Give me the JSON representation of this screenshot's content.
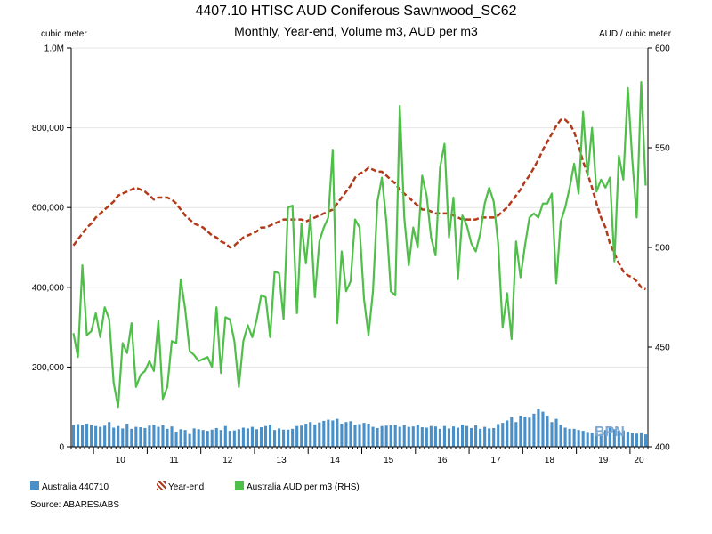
{
  "chart_data": {
    "type": "bar",
    "title": "4407.10 HTISC AUD Coniferous Sawnwood_SC62",
    "subtitle": "Monthly, Year-end, Volume m3, AUD per m3",
    "ylabel_left": "cubic meter",
    "ylabel_right": "AUD / cubic meter",
    "source": "Source: ABARES/ABS",
    "watermark": "BPN",
    "ylim_left": [
      0,
      1000000
    ],
    "ylim_right": [
      400,
      600
    ],
    "yticks_left": [
      {
        "value": 0,
        "label": "0"
      },
      {
        "value": 200000,
        "label": "200,000"
      },
      {
        "value": 400000,
        "label": "400,000"
      },
      {
        "value": 600000,
        "label": "600,000"
      },
      {
        "value": 800000,
        "label": "800,000"
      },
      {
        "value": 1000000,
        "label": "1.0M"
      }
    ],
    "yticks_right": [
      {
        "value": 400,
        "label": "400"
      },
      {
        "value": 450,
        "label": "450"
      },
      {
        "value": 500,
        "label": "500"
      },
      {
        "value": 550,
        "label": "550"
      },
      {
        "value": 600,
        "label": "600"
      }
    ],
    "x_year_labels": [
      "10",
      "11",
      "12",
      "13",
      "14",
      "15",
      "16",
      "17",
      "18",
      "19",
      "20"
    ],
    "x_start": "2009-08",
    "months": 129,
    "series": [
      {
        "name": "Australia 440710",
        "kind": "bar",
        "axis": "left",
        "color": "#4a90c8",
        "values": [
          55000,
          57000,
          54000,
          58000,
          55000,
          52000,
          50000,
          53000,
          62000,
          48000,
          52000,
          46000,
          58000,
          45000,
          50000,
          49000,
          47000,
          53000,
          55000,
          50000,
          54000,
          45000,
          51000,
          38000,
          44000,
          42000,
          32000,
          46000,
          44000,
          42000,
          40000,
          43000,
          47000,
          42000,
          52000,
          40000,
          41000,
          44000,
          48000,
          46000,
          50000,
          44000,
          49000,
          52000,
          56000,
          42000,
          46000,
          43000,
          43000,
          45000,
          52000,
          53000,
          58000,
          62000,
          56000,
          61000,
          65000,
          68000,
          66000,
          70000,
          58000,
          62000,
          64000,
          55000,
          57000,
          60000,
          58000,
          50000,
          47000,
          52000,
          53000,
          54000,
          55000,
          50000,
          54000,
          50000,
          51000,
          55000,
          49000,
          48000,
          52000,
          51000,
          45000,
          52000,
          46000,
          51000,
          48000,
          55000,
          52000,
          47000,
          54000,
          45000,
          50000,
          46000,
          47000,
          57000,
          60000,
          66000,
          74000,
          62000,
          78000,
          76000,
          73000,
          83000,
          95000,
          88000,
          78000,
          62000,
          70000,
          55000,
          48000,
          45000,
          45000,
          42000,
          40000,
          37000,
          35000,
          36000,
          32000,
          42000,
          50000,
          44000,
          40000,
          41000,
          38000,
          35000,
          33000,
          36000,
          31000
        ]
      },
      {
        "name": "Year-end",
        "kind": "line",
        "axis": "right",
        "color": "#b23a1a",
        "dashed": true,
        "values": [
          501,
          504,
          507,
          510,
          512,
          515,
          517,
          519,
          521,
          523,
          526,
          527,
          528,
          529,
          530,
          529,
          528,
          526,
          524,
          525,
          525,
          525,
          524,
          522,
          519,
          516,
          514,
          512,
          511,
          510,
          508,
          506,
          505,
          503,
          502,
          500,
          501,
          503,
          505,
          506,
          507,
          508,
          510,
          510,
          511,
          512,
          513,
          514,
          514,
          514,
          514,
          514,
          513,
          514,
          515,
          516,
          517,
          518,
          519,
          522,
          525,
          528,
          531,
          535,
          537,
          538,
          540,
          539,
          538,
          538,
          536,
          534,
          532,
          529,
          527,
          525,
          523,
          521,
          519,
          519,
          518,
          517,
          517,
          517,
          517,
          516,
          515,
          514,
          514,
          514,
          514,
          515,
          515,
          515,
          515,
          516,
          518,
          520,
          523,
          526,
          529,
          533,
          536,
          540,
          544,
          549,
          553,
          557,
          561,
          564,
          564,
          562,
          558,
          551,
          543,
          537,
          530,
          522,
          515,
          510,
          502,
          497,
          492,
          488,
          486,
          485,
          483,
          480,
          479
        ]
      },
      {
        "name": "Australia AUD per m3 (RHS)",
        "kind": "line",
        "axis": "right",
        "color": "#4fbf4a",
        "values": [
          457,
          445,
          491,
          456,
          458,
          467,
          455,
          470,
          464,
          432,
          420,
          452,
          447,
          462,
          430,
          436,
          438,
          443,
          438,
          463,
          424,
          430,
          453,
          452,
          484,
          469,
          448,
          446,
          443,
          444,
          445,
          440,
          470,
          437,
          465,
          464,
          453,
          430,
          453,
          461,
          455,
          464,
          476,
          475,
          455,
          488,
          487,
          464,
          520,
          521,
          467,
          512,
          492,
          516,
          475,
          503,
          510,
          515,
          549,
          462,
          498,
          478,
          483,
          514,
          510,
          474,
          456,
          478,
          523,
          535,
          513,
          478,
          476,
          571,
          515,
          491,
          510,
          500,
          536,
          526,
          505,
          496,
          540,
          552,
          505,
          525,
          484,
          516,
          511,
          502,
          498,
          507,
          522,
          530,
          523,
          502,
          460,
          477,
          454,
          503,
          485,
          501,
          515,
          517,
          515,
          522,
          522,
          527,
          482,
          513,
          520,
          530,
          542,
          527,
          568,
          536,
          560,
          528,
          534,
          530,
          535,
          493,
          546,
          534,
          580,
          544,
          515,
          583,
          531
        ]
      }
    ]
  },
  "legend": {
    "items": [
      {
        "label": "Australia 440710"
      },
      {
        "label": "Year-end"
      },
      {
        "label": "Australia AUD per m3 (RHS)"
      }
    ]
  }
}
